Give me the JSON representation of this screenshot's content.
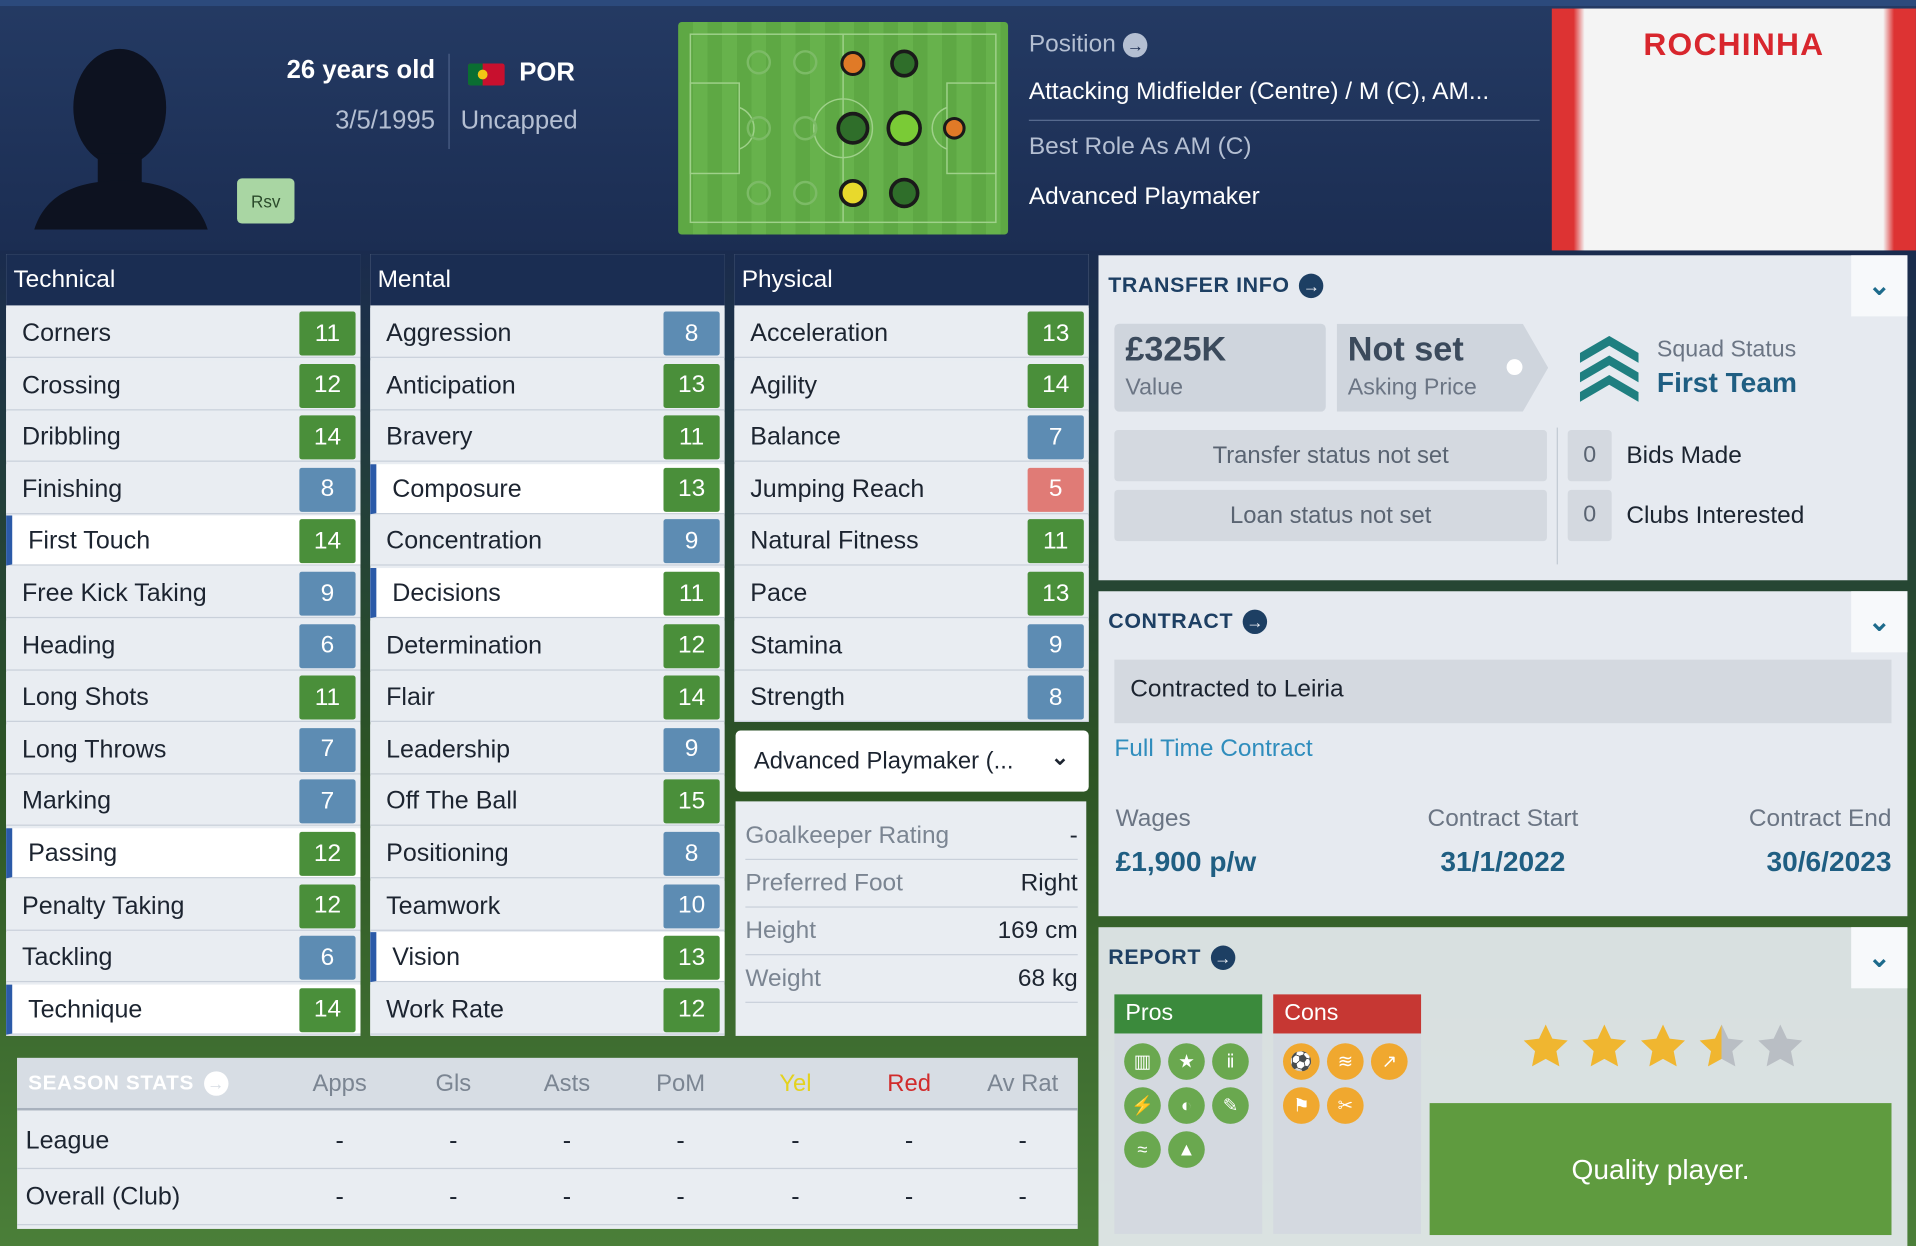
{
  "player": {
    "age": "26 years old",
    "dob": "3/5/1995",
    "nation_code": "POR",
    "caps": "Uncapped",
    "squad_tag": "Rsv",
    "shirt_name": "ROCHINHA"
  },
  "position": {
    "label": "Position",
    "value": "Attacking Midfielder (Centre) / M (C), AM...",
    "best_role_label": "Best Role As AM (C)",
    "role_value": "Advanced Playmaker"
  },
  "technical": {
    "title": "Technical",
    "rows": [
      {
        "name": "Corners",
        "value": "11",
        "c": "g"
      },
      {
        "name": "Crossing",
        "value": "12",
        "c": "g"
      },
      {
        "name": "Dribbling",
        "value": "14",
        "c": "g"
      },
      {
        "name": "Finishing",
        "value": "8",
        "c": "b"
      },
      {
        "name": "First Touch",
        "value": "14",
        "c": "g",
        "hl": true
      },
      {
        "name": "Free Kick Taking",
        "value": "9",
        "c": "b"
      },
      {
        "name": "Heading",
        "value": "6",
        "c": "b"
      },
      {
        "name": "Long Shots",
        "value": "11",
        "c": "g"
      },
      {
        "name": "Long Throws",
        "value": "7",
        "c": "b"
      },
      {
        "name": "Marking",
        "value": "7",
        "c": "b"
      },
      {
        "name": "Passing",
        "value": "12",
        "c": "g",
        "hl": true
      },
      {
        "name": "Penalty Taking",
        "value": "12",
        "c": "g"
      },
      {
        "name": "Tackling",
        "value": "6",
        "c": "b"
      },
      {
        "name": "Technique",
        "value": "14",
        "c": "g",
        "hl": true
      }
    ]
  },
  "mental": {
    "title": "Mental",
    "rows": [
      {
        "name": "Aggression",
        "value": "8",
        "c": "b"
      },
      {
        "name": "Anticipation",
        "value": "13",
        "c": "g"
      },
      {
        "name": "Bravery",
        "value": "11",
        "c": "g"
      },
      {
        "name": "Composure",
        "value": "13",
        "c": "g",
        "hl": true
      },
      {
        "name": "Concentration",
        "value": "9",
        "c": "b"
      },
      {
        "name": "Decisions",
        "value": "11",
        "c": "g",
        "hl": true
      },
      {
        "name": "Determination",
        "value": "12",
        "c": "g"
      },
      {
        "name": "Flair",
        "value": "14",
        "c": "g"
      },
      {
        "name": "Leadership",
        "value": "9",
        "c": "b"
      },
      {
        "name": "Off The Ball",
        "value": "15",
        "c": "g"
      },
      {
        "name": "Positioning",
        "value": "8",
        "c": "b"
      },
      {
        "name": "Teamwork",
        "value": "10",
        "c": "b"
      },
      {
        "name": "Vision",
        "value": "13",
        "c": "g",
        "hl": true
      },
      {
        "name": "Work Rate",
        "value": "12",
        "c": "g"
      }
    ]
  },
  "physical": {
    "title": "Physical",
    "rows": [
      {
        "name": "Acceleration",
        "value": "13",
        "c": "g"
      },
      {
        "name": "Agility",
        "value": "14",
        "c": "g"
      },
      {
        "name": "Balance",
        "value": "7",
        "c": "b"
      },
      {
        "name": "Jumping Reach",
        "value": "5",
        "c": "r"
      },
      {
        "name": "Natural Fitness",
        "value": "11",
        "c": "g"
      },
      {
        "name": "Pace",
        "value": "13",
        "c": "g"
      },
      {
        "name": "Stamina",
        "value": "9",
        "c": "b"
      },
      {
        "name": "Strength",
        "value": "8",
        "c": "b"
      }
    ]
  },
  "role_dropdown": "Advanced Playmaker (...",
  "info": [
    {
      "k": "Goalkeeper Rating",
      "v": "-"
    },
    {
      "k": "Preferred Foot",
      "v": "Right"
    },
    {
      "k": "Height",
      "v": "169 cm"
    },
    {
      "k": "Weight",
      "v": "68 kg"
    }
  ],
  "transfer": {
    "title": "TRANSFER INFO",
    "value": "£325K",
    "value_label": "Value",
    "asking": "Not set",
    "asking_label": "Asking Price",
    "squad_label": "Squad Status",
    "squad_value": "First Team",
    "transfer_status": "Transfer status not set",
    "loan_status": "Loan status not set",
    "bids_count": "0",
    "bids_label": "Bids Made",
    "clubs_count": "0",
    "clubs_label": "Clubs Interested"
  },
  "contract": {
    "title": "CONTRACT",
    "contracted": "Contracted to Leiria",
    "type": "Full Time Contract",
    "wages_label": "Wages",
    "wages": "£1,900 p/w",
    "start_label": "Contract Start",
    "start": "31/1/2022",
    "end_label": "Contract End",
    "end": "30/6/2023"
  },
  "report": {
    "title": "REPORT",
    "pros_label": "Pros",
    "cons_label": "Cons",
    "rating_stars": 3.5,
    "summary": "Quality player."
  },
  "season": {
    "title": "SEASON STATS",
    "columns": [
      "Apps",
      "Gls",
      "Asts",
      "PoM",
      "Yel",
      "Red",
      "Av Rat"
    ],
    "rows": [
      {
        "label": "League",
        "cells": [
          "-",
          "-",
          "-",
          "-",
          "-",
          "-",
          "-"
        ]
      },
      {
        "label": "Overall (Club)",
        "cells": [
          "-",
          "-",
          "-",
          "-",
          "-",
          "-",
          "-"
        ]
      }
    ]
  },
  "colors": {
    "green": "#4a8f3a",
    "blue": "#5d8cb3",
    "red": "#e07b76",
    "accent": "#1f5e82"
  }
}
